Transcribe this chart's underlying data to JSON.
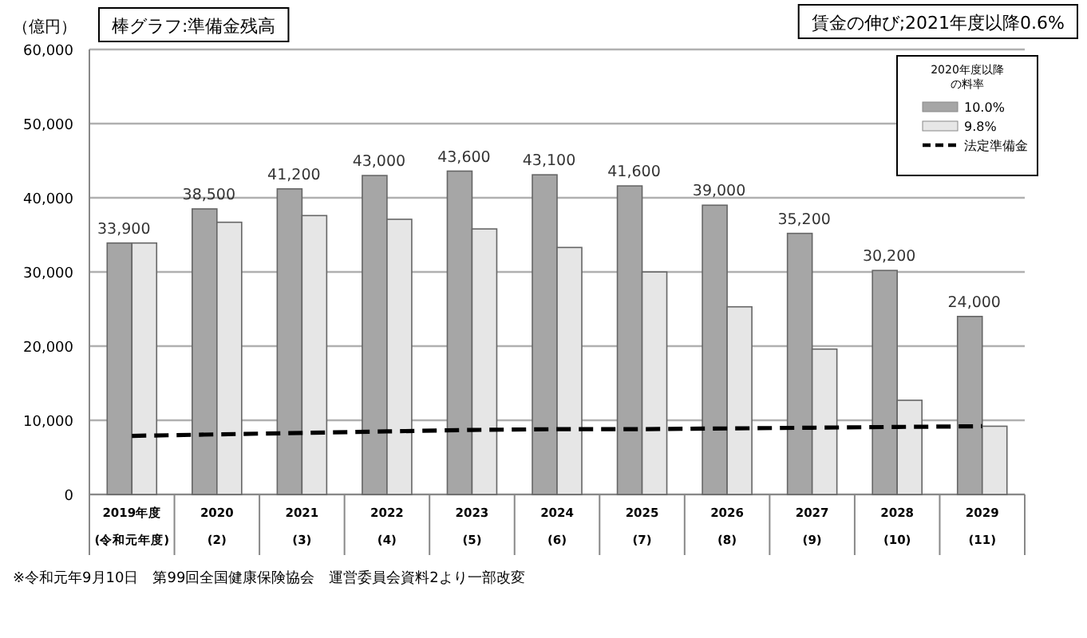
{
  "chart_data": {
    "type": "bar",
    "ylabel": "（億円）",
    "categories": [
      "2019年度 (令和元年度)",
      "2020 (2)",
      "2021 (3)",
      "2022 (4)",
      "2023 (5)",
      "2024 (6)",
      "2025 (7)",
      "2026 (8)",
      "2027 (9)",
      "2028 (10)",
      "2029 (11)"
    ],
    "series": [
      {
        "name": "10.0%",
        "color": "#a6a6a6",
        "values": [
          33900,
          38500,
          41200,
          43000,
          43600,
          43100,
          41600,
          39000,
          35200,
          30200,
          24000
        ],
        "value_labels": [
          "33,900",
          "38,500",
          "41,200",
          "43,000",
          "43,600",
          "43,100",
          "41,600",
          "39,000",
          "35,200",
          "30,200",
          "24,000"
        ]
      },
      {
        "name": "9.8%",
        "color": "#e6e6e6",
        "values": [
          33900,
          36700,
          37600,
          37100,
          35800,
          33300,
          30000,
          25300,
          19600,
          12700,
          9200
        ]
      },
      {
        "name": "法定準備金",
        "type": "line",
        "line_style": "dashed",
        "color": "#000000",
        "values": [
          7900,
          8100,
          8300,
          8500,
          8700,
          8800,
          8800,
          8900,
          9000,
          9100,
          9200
        ]
      }
    ],
    "legend_title": "2020年度以降の料率",
    "legend": "top right",
    "ylim": [
      0,
      60000
    ],
    "yticks": [
      {
        "value": 0,
        "label": "0"
      },
      {
        "value": 10000,
        "label": "10,000"
      },
      {
        "value": 20000,
        "label": "20,000"
      },
      {
        "value": 30000,
        "label": "30,000"
      },
      {
        "value": 40000,
        "label": "40,000"
      },
      {
        "value": 50000,
        "label": "50,000"
      },
      {
        "value": 60000,
        "label": "60,000"
      }
    ],
    "grid": "y",
    "annotations": [
      "棒グラフ:準備金残高",
      "賃金の伸び;2021年度以降0.6%",
      "※令和元年9月10日　第99回全国健康保険協会　運営委員会資料2より一部改変"
    ]
  }
}
